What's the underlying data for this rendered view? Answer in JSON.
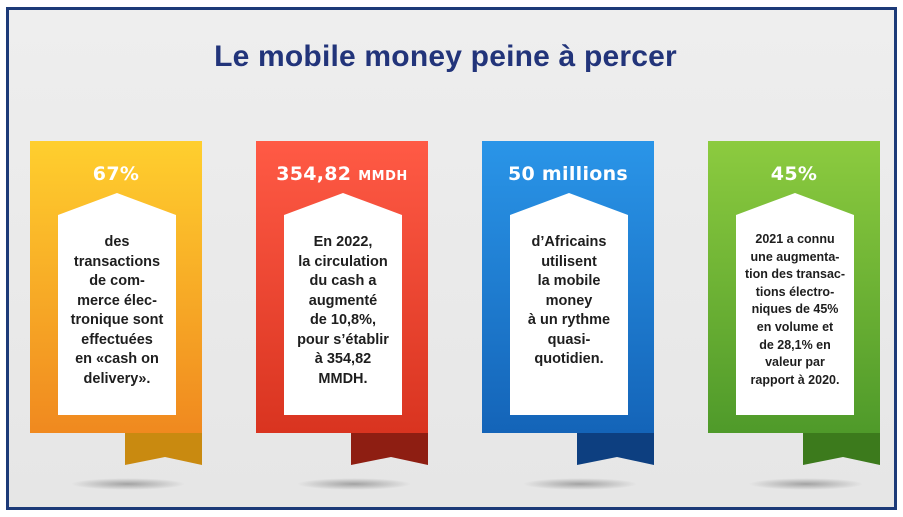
{
  "title": "Le mobile money peine à percer",
  "cards": [
    {
      "value": "67%",
      "unit": "",
      "lines": [
        "des",
        "transactions",
        "de com-",
        "merce élec-",
        "tronique sont",
        "effectuées",
        "en «cash on",
        "delivery»."
      ],
      "colors": {
        "top": "#ffcf2e",
        "bottom": "#f0891f",
        "tail": "#c98a10"
      }
    },
    {
      "value": "354,82",
      "unit": "MMDH",
      "lines": [
        "En 2022,",
        "la circulation",
        "du cash a",
        "augmenté",
        "de 10,8%,",
        "pour s’établir",
        "à 354,82",
        "MMDH."
      ],
      "colors": {
        "top": "#ff5a45",
        "bottom": "#d93420",
        "tail": "#8e1e12"
      }
    },
    {
      "value": "50 millions",
      "unit": "",
      "lines": [
        "d’Africains",
        "utilisent",
        "la mobile",
        "money",
        "à un rythme",
        "quasi-",
        "quotidien."
      ],
      "colors": {
        "top": "#2a95e8",
        "bottom": "#1464b8",
        "tail": "#0d3f80"
      }
    },
    {
      "value": "45%",
      "unit": "",
      "lines": [
        "2021 a connu",
        "une augmenta-",
        "tion des transac-",
        "tions électro-",
        "niques de 45%",
        "en volume et",
        "de 28,1% en",
        "valeur par",
        "rapport à 2020."
      ],
      "colors": {
        "top": "#8ccb3f",
        "bottom": "#4f9a2a",
        "tail": "#3c7a1c"
      }
    }
  ]
}
